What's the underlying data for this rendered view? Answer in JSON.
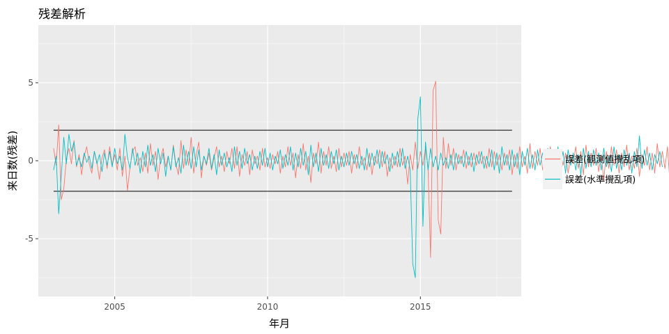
{
  "chart_data": {
    "type": "line",
    "title": "残差解析",
    "xlabel": "年月",
    "ylabel": "来日数(残差)",
    "xlim": [
      2002.5,
      2018.3
    ],
    "ylim": [
      -8.7,
      8.7
    ],
    "x_ticks": [
      2005,
      2010,
      2015
    ],
    "x_tick_labels": [
      "2005",
      "2010",
      "2015"
    ],
    "y_ticks": [
      -5,
      0,
      5
    ],
    "y_tick_labels": [
      "-5",
      "0",
      "5"
    ],
    "grid": true,
    "legend_position": "right",
    "reference_lines": [
      {
        "y": 1.96,
        "x_from": 2003.0,
        "x_to": 2018.0,
        "color": "#000000"
      },
      {
        "y": -1.96,
        "x_from": 2003.0,
        "x_to": 2018.0,
        "color": "#000000"
      }
    ],
    "x_start": 2003.0,
    "x_step": 0.0833333,
    "series": [
      {
        "name": "誤差(観測値攪乱項)",
        "color": "#F8766D",
        "values": [
          0.8,
          -0.3,
          2.3,
          -2.5,
          -1.8,
          0.1,
          0.8,
          -0.2,
          1.3,
          -0.4,
          0.4,
          -0.9,
          0.3,
          0.9,
          -0.2,
          -0.8,
          0.6,
          -0.1,
          -1.2,
          0.2,
          0.7,
          -0.5,
          0.9,
          -0.3,
          0.4,
          -0.6,
          0.8,
          -1.0,
          0.3,
          -1.9,
          -0.4,
          0.6,
          0.9,
          -0.3,
          0.2,
          -0.7,
          0.5,
          -0.8,
          1.1,
          -0.3,
          0.6,
          -1.2,
          0.2,
          0.8,
          -0.4,
          0.3,
          -0.6,
          1.0,
          -0.2,
          -0.9,
          1.3,
          -0.5,
          0.7,
          -0.3,
          1.5,
          -0.8,
          0.4,
          1.2,
          -1.1,
          0.3,
          -0.3,
          0.5,
          -0.6,
          0.2,
          0.9,
          -0.4,
          0.3,
          -0.7,
          0.6,
          -0.2,
          0.8,
          -0.5,
          0.9,
          -1.0,
          0.4,
          -0.3,
          0.6,
          -0.9,
          0.7,
          -0.2,
          0.3,
          -0.6,
          0.8,
          -0.4,
          0.2,
          -0.5,
          0.4,
          -0.2,
          0.6,
          -0.8,
          0.3,
          -0.4,
          0.9,
          -0.3,
          0.5,
          -1.1,
          0.4,
          -0.5,
          1.1,
          -0.6,
          0.3,
          -1.4,
          0.5,
          -0.2,
          1.2,
          -0.8,
          0.6,
          -0.3,
          0.9,
          -0.5,
          0.3,
          -0.7,
          0.8,
          -0.4,
          0.5,
          -0.3,
          0.6,
          -0.8,
          0.4,
          -0.5,
          0.9,
          -0.3,
          0.2,
          -0.6,
          0.5,
          -0.9,
          0.3,
          -0.2,
          0.7,
          -0.4,
          0.6,
          -1.0,
          0.2,
          -0.5,
          0.3,
          -0.4,
          0.8,
          -0.3,
          0.3,
          -1.5,
          0.4,
          -0.6,
          1.2,
          -0.5,
          0.6,
          -0.3,
          0.8,
          -0.4,
          -6.2,
          4.5,
          5.1,
          -3.8,
          -4.7,
          1.5,
          -0.5,
          1.1,
          -0.3,
          0.8,
          -0.6,
          0.4,
          -0.2,
          0.7,
          -0.5,
          0.3,
          -0.4,
          0.5,
          -0.3,
          0.6,
          -0.2,
          0.3,
          -0.5,
          0.8,
          -0.4,
          0.6,
          -0.3,
          0.4,
          -0.6,
          0.5,
          -0.3,
          0.7,
          -0.9,
          0.4,
          -0.5,
          0.9,
          -0.4,
          0.3,
          -0.8,
          1.1,
          -0.5,
          0.6,
          -0.3,
          0.8,
          -0.6,
          0.4,
          -0.7,
          0.9,
          -0.4,
          0.3,
          -0.6,
          0.7,
          -0.3,
          0.5,
          -0.8,
          0.4,
          -0.2,
          0.9,
          -0.5,
          0.6,
          -0.9,
          1.0,
          -0.4,
          0.5,
          -0.3,
          0.8,
          -0.7,
          0.4,
          -1.3,
          0.6,
          -0.5,
          0.9,
          -0.3,
          0.7,
          -0.8,
          0.5,
          -0.4,
          1.0,
          -0.6,
          0.3,
          -0.5,
          0.8,
          -1.0,
          0.4,
          -0.3,
          0.9,
          -0.6,
          0.5,
          -0.8,
          1.1,
          -0.4,
          0.6,
          -0.5,
          0.9,
          -1.5,
          0.3,
          -0.2,
          0.7,
          -0.4,
          0.6,
          -0.3,
          0.5,
          -0.6,
          0.7
        ]
      },
      {
        "name": "誤差(水準攪乱項)",
        "color": "#00BFC4",
        "values": [
          -0.6,
          0.3,
          -3.4,
          -1.0,
          1.5,
          -0.2,
          1.7,
          0.6,
          1.2,
          -0.3,
          0.2,
          -0.4,
          0.5,
          -0.1,
          0.3,
          -0.5,
          0.6,
          -0.2,
          0.4,
          -0.7,
          0.5,
          -0.3,
          0.6,
          -0.4,
          0.8,
          -0.2,
          0.3,
          -0.6,
          1.7,
          0.2,
          -0.5,
          0.8,
          -0.3,
          0.5,
          -0.8,
          0.6,
          -0.4,
          1.0,
          -0.3,
          0.4,
          -0.7,
          0.8,
          -0.2,
          0.5,
          -1.0,
          0.3,
          -0.6,
          0.9,
          -0.4,
          0.2,
          -0.8,
          1.0,
          -0.3,
          0.6,
          -0.5,
          0.9,
          -0.4,
          0.7,
          -0.6,
          0.3,
          -0.2,
          0.8,
          -0.5,
          0.4,
          -0.9,
          0.7,
          -0.3,
          0.5,
          -0.4,
          0.2,
          -0.7,
          0.9,
          -0.3,
          0.6,
          -0.5,
          0.8,
          -0.2,
          0.4,
          -0.6,
          0.3,
          -0.5,
          0.6,
          -0.3,
          0.8,
          -0.4,
          0.5,
          -0.6,
          0.3,
          -0.2,
          0.7,
          -0.5,
          0.4,
          -0.3,
          0.9,
          -0.6,
          0.5,
          -0.4,
          0.8,
          -0.3,
          0.6,
          -0.9,
          1.0,
          -0.4,
          0.5,
          -0.7,
          0.8,
          -0.3,
          0.4,
          -0.5,
          0.6,
          -0.2,
          0.7,
          -0.6,
          0.3,
          -0.4,
          0.5,
          -0.3,
          0.6,
          -0.2,
          0.4,
          -0.5,
          0.3,
          -0.6,
          0.8,
          -0.4,
          0.5,
          -0.3,
          0.7,
          -0.5,
          0.6,
          -0.2,
          0.4,
          -0.7,
          0.5,
          -0.3,
          0.6,
          -0.4,
          0.8,
          -0.5,
          0.3,
          -0.6,
          -6.6,
          -7.5,
          2.7,
          4.1,
          -4.2,
          1.2,
          -0.6,
          0.8,
          -0.4,
          0.3,
          -0.6,
          0.5,
          -0.3,
          0.2,
          -0.5,
          0.4,
          -0.6,
          0.5,
          -0.2,
          0.3,
          -0.4,
          0.6,
          -0.3,
          0.5,
          -0.7,
          0.4,
          -0.2,
          0.6,
          -0.5,
          0.3,
          -0.4,
          0.7,
          -0.6,
          0.5,
          -0.8,
          0.9,
          -0.3,
          0.4,
          -0.6,
          0.7,
          -0.4,
          0.5,
          -0.9,
          0.6,
          -0.3,
          0.8,
          -0.5,
          0.4,
          -0.6,
          0.7,
          -0.3,
          0.5,
          -0.4,
          0.8,
          -0.6,
          0.3,
          -0.5,
          0.9,
          -0.4,
          0.6,
          -0.8,
          0.7,
          -0.3,
          0.5,
          -0.6,
          0.4,
          -0.9,
          0.8,
          -0.5,
          0.6,
          -0.4,
          0.7,
          -0.3,
          0.5,
          -0.6,
          0.8,
          -0.4,
          0.3,
          -0.7,
          0.9,
          -0.5,
          0.4,
          -0.6,
          0.7,
          -0.3,
          0.5,
          -0.8,
          0.6,
          -0.4,
          1.6,
          -0.5,
          0.7,
          -0.3,
          0.5,
          -0.6,
          0.4,
          -0.2,
          0.6,
          -0.4
        ]
      }
    ]
  }
}
